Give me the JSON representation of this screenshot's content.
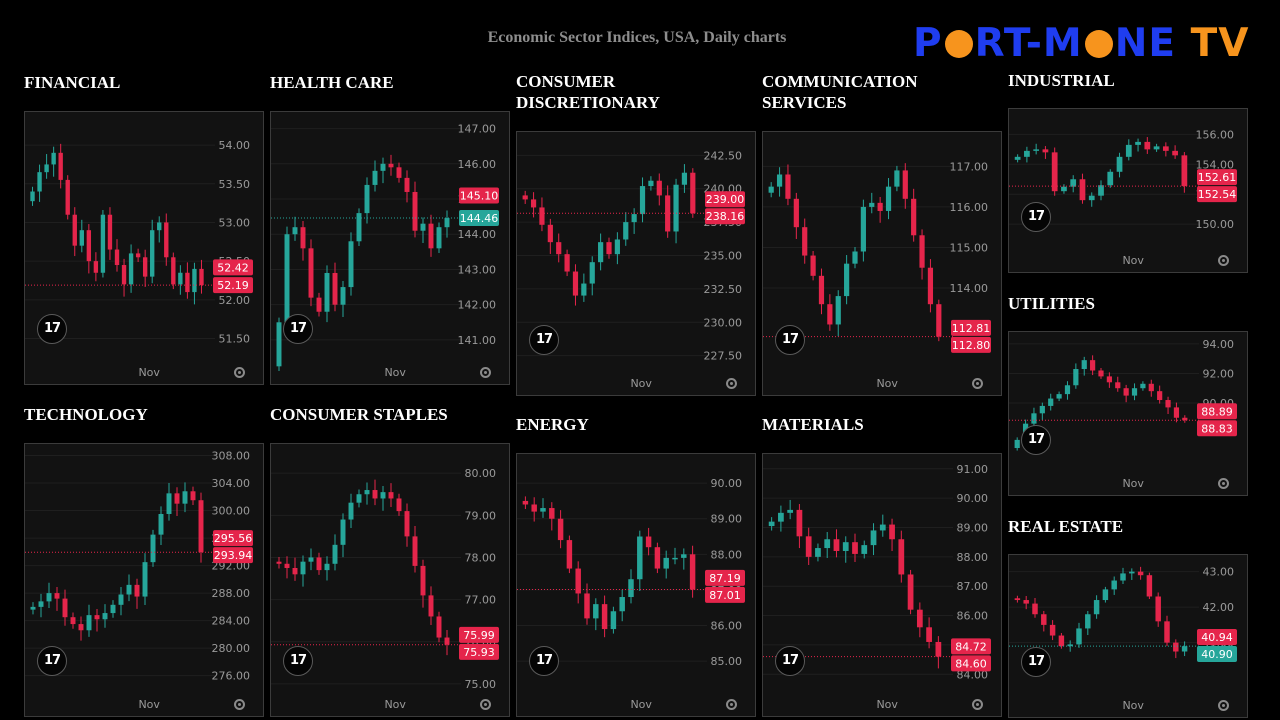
{
  "page": {
    "title": "Economic Sector Indices, USA, Daily charts",
    "logo_text": "PORT-MONE TV",
    "colors": {
      "up": "#26a69a",
      "down": "#e5254b",
      "background": "#000000",
      "panel": "#121212"
    }
  },
  "chart_data": [
    {
      "type": "candlestick",
      "title": "FINANCIAL",
      "x_tick": "Nov",
      "yticks": [
        51.5,
        52.0,
        52.5,
        53.0,
        53.5,
        54.0
      ],
      "ylim": [
        51.3,
        54.35
      ],
      "last": 52.19,
      "prev": 52.42,
      "last_up": false,
      "closes": [
        53.4,
        53.65,
        53.75,
        53.9,
        53.55,
        53.1,
        52.7,
        52.9,
        52.5,
        52.35,
        53.1,
        52.65,
        52.45,
        52.2,
        52.6,
        52.55,
        52.3,
        52.9,
        53.0,
        52.55,
        52.2,
        52.35,
        52.1,
        52.4,
        52.19
      ]
    },
    {
      "type": "candlestick",
      "title": "HEALTH CARE",
      "x_tick": "Nov",
      "yticks": [
        141.0,
        142.0,
        143.0,
        144.0,
        145.0,
        146.0,
        147.0
      ],
      "ylim": [
        140.6,
        147.3
      ],
      "last": 144.46,
      "prev": 145.1,
      "last_up": true,
      "closes": [
        141.5,
        144.0,
        144.2,
        143.6,
        142.2,
        141.8,
        142.9,
        142.0,
        142.5,
        143.8,
        144.6,
        145.4,
        145.8,
        146.0,
        145.9,
        145.6,
        145.2,
        144.1,
        144.3,
        143.6,
        144.2,
        144.46
      ]
    },
    {
      "type": "candlestick",
      "title": "CONSUMER DISCRETIONARY",
      "x_tick": "Nov",
      "yticks": [
        227.5,
        230.0,
        232.5,
        235.0,
        237.5,
        240.0,
        242.5
      ],
      "ylim": [
        226.8,
        243.8
      ],
      "last": 238.16,
      "prev": 239.0,
      "last_up": false,
      "closes": [
        239.2,
        238.6,
        237.3,
        236.0,
        235.1,
        233.8,
        232.0,
        232.9,
        234.5,
        236.0,
        235.1,
        236.2,
        237.5,
        238.1,
        240.2,
        240.6,
        239.5,
        236.8,
        240.3,
        241.2,
        238.16
      ]
    },
    {
      "type": "candlestick",
      "title": "COMMUNICATION SERVICES",
      "x_tick": "Nov",
      "yticks": [
        114.0,
        115.0,
        116.0,
        117.0
      ],
      "ylim": [
        112.1,
        117.7
      ],
      "last": 112.8,
      "prev": 112.81,
      "last_up": false,
      "closes": [
        116.5,
        116.8,
        116.2,
        115.5,
        114.8,
        114.3,
        113.6,
        113.1,
        113.8,
        114.6,
        114.9,
        116.0,
        116.1,
        115.9,
        116.5,
        116.9,
        116.2,
        115.3,
        114.5,
        113.6,
        112.8
      ]
    },
    {
      "type": "candlestick",
      "title": "INDUSTRIAL",
      "x_tick": "Nov",
      "yticks": [
        150.0,
        152.0,
        154.0,
        156.0
      ],
      "ylim": [
        148.8,
        157.3
      ],
      "last": 152.54,
      "prev": 152.61,
      "last_up": false,
      "closes": [
        154.5,
        154.9,
        155.0,
        154.8,
        152.2,
        152.5,
        153.0,
        151.6,
        151.9,
        152.6,
        153.5,
        154.5,
        155.3,
        155.5,
        155.0,
        155.2,
        154.9,
        154.6,
        152.54
      ]
    },
    {
      "type": "candlestick",
      "title": "UTILITIES",
      "x_tick": "Nov",
      "yticks": [
        90.0,
        92.0,
        94.0
      ],
      "ylim": [
        85.8,
        94.4
      ],
      "last": 88.83,
      "prev": 88.89,
      "last_up": false,
      "closes": [
        87.5,
        88.6,
        89.3,
        89.8,
        90.3,
        90.6,
        91.2,
        92.3,
        92.9,
        92.2,
        91.8,
        91.4,
        91.0,
        90.5,
        91.0,
        91.3,
        90.8,
        90.2,
        89.7,
        89.0,
        88.83
      ]
    },
    {
      "type": "candlestick",
      "title": "TECHNOLOGY",
      "x_tick": "Nov",
      "yticks": [
        276.0,
        280.0,
        284.0,
        288.0,
        292.0,
        296.0,
        300.0,
        304.0,
        308.0
      ],
      "ylim": [
        274.5,
        308.8
      ],
      "last": 293.94,
      "prev": 295.56,
      "last_up": false,
      "closes": [
        286.0,
        286.8,
        288.0,
        287.2,
        284.5,
        283.5,
        282.6,
        284.8,
        284.2,
        285.1,
        286.3,
        287.8,
        289.2,
        287.5,
        292.5,
        296.5,
        299.5,
        302.5,
        301.0,
        302.8,
        301.5,
        293.94
      ]
    },
    {
      "type": "candlestick",
      "title": "CONSUMER STAPLES",
      "x_tick": "Nov",
      "yticks": [
        75.0,
        76.0,
        77.0,
        78.0,
        79.0,
        80.0
      ],
      "ylim": [
        74.95,
        80.55
      ],
      "last": 75.93,
      "prev": 75.99,
      "last_up": false,
      "closes": [
        77.85,
        77.75,
        77.6,
        77.9,
        78.0,
        77.7,
        77.85,
        78.3,
        78.9,
        79.3,
        79.5,
        79.6,
        79.4,
        79.55,
        79.4,
        79.1,
        78.5,
        77.8,
        77.1,
        76.6,
        76.1,
        75.93
      ]
    },
    {
      "type": "candlestick",
      "title": "ENERGY",
      "x_tick": "Nov",
      "yticks": [
        85.0,
        86.0,
        87.0,
        88.0,
        89.0,
        90.0
      ],
      "ylim": [
        84.3,
        90.65
      ],
      "last": 87.01,
      "prev": 87.19,
      "last_up": false,
      "closes": [
        89.4,
        89.2,
        89.3,
        89.0,
        88.4,
        87.6,
        86.9,
        86.2,
        86.6,
        85.9,
        86.4,
        86.8,
        87.3,
        88.5,
        88.2,
        87.6,
        87.9,
        87.9,
        88.0,
        87.01
      ]
    },
    {
      "type": "candlestick",
      "title": "MATERIALS",
      "x_tick": "Nov",
      "yticks": [
        84.0,
        85.0,
        86.0,
        87.0,
        88.0,
        89.0,
        90.0,
        91.0
      ],
      "ylim": [
        83.6,
        91.3
      ],
      "last": 84.6,
      "prev": 84.72,
      "last_up": false,
      "closes": [
        89.2,
        89.5,
        89.6,
        88.7,
        88.0,
        88.3,
        88.6,
        88.2,
        88.5,
        88.1,
        88.4,
        88.9,
        89.1,
        88.6,
        87.4,
        86.2,
        85.6,
        85.1,
        84.6
      ]
    },
    {
      "type": "candlestick",
      "title": "REAL ESTATE",
      "x_tick": "Nov",
      "yticks": [
        41.0,
        42.0,
        43.0
      ],
      "ylim": [
        39.75,
        43.3
      ],
      "last": 40.9,
      "prev": 40.94,
      "last_up": true,
      "closes": [
        42.2,
        42.1,
        41.8,
        41.5,
        41.2,
        40.9,
        40.95,
        41.4,
        41.8,
        42.2,
        42.5,
        42.75,
        42.95,
        43.0,
        42.9,
        42.3,
        41.6,
        41.0,
        40.75,
        40.9
      ]
    }
  ]
}
